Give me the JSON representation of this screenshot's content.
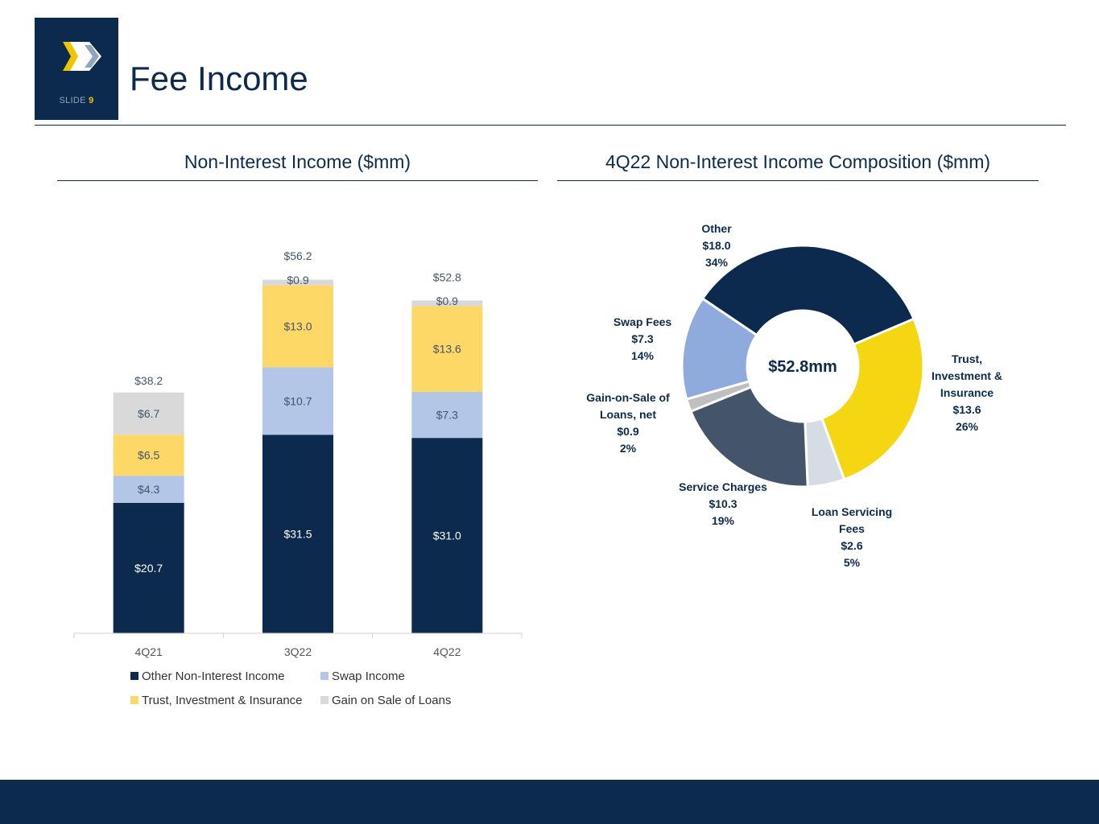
{
  "header": {
    "title": "Fee Income",
    "slide_label": "SLIDE",
    "slide_number": "9"
  },
  "left_panel": {
    "title": "Non-Interest Income ($mm)"
  },
  "right_panel": {
    "title": "4Q22 Non-Interest Income Composition ($mm)"
  },
  "colors": {
    "navy": "#0c2a4d",
    "swap": "#b3c6e7",
    "trust_bar": "#fdd866",
    "gain_bar": "#d9d9d9",
    "trust_donut": "#f4d612",
    "swap_donut": "#8faadc",
    "service": "#44546a",
    "loan_servicing": "#d6dce4",
    "gain_donut": "#bfbfbf"
  },
  "chart_data": [
    {
      "type": "bar",
      "stacked": true,
      "title": "Non-Interest Income ($mm)",
      "categories": [
        "4Q21",
        "3Q22",
        "4Q22"
      ],
      "series": [
        {
          "name": "Other Non-Interest Income",
          "values": [
            20.7,
            31.5,
            31.0
          ],
          "labels": [
            "$20.7",
            "$31.5",
            "$31.0"
          ]
        },
        {
          "name": "Swap Income",
          "values": [
            4.3,
            10.7,
            7.3
          ],
          "labels": [
            "$4.3",
            "$10.7",
            "$7.3"
          ]
        },
        {
          "name": "Trust, Investment & Insurance",
          "values": [
            6.5,
            13.0,
            13.6
          ],
          "labels": [
            "$6.5",
            "$13.0",
            "$13.6"
          ]
        },
        {
          "name": "Gain on Sale of Loans",
          "values": [
            6.7,
            0.9,
            0.9
          ],
          "labels": [
            "$6.7",
            "$0.9",
            "$0.9"
          ]
        }
      ],
      "totals": [
        38.2,
        56.2,
        52.8
      ],
      "total_labels": [
        "$38.2",
        "$56.2",
        "$52.8"
      ],
      "ylim": [
        0,
        60
      ],
      "legend": "bottom"
    },
    {
      "type": "pie",
      "donut": true,
      "title": "4Q22 Non-Interest Income Composition ($mm)",
      "center_label": "$52.8mm",
      "slices": [
        {
          "name": "Other",
          "value": 18.0,
          "percent": 34,
          "label_lines": [
            "Other",
            "$18.0",
            "34%"
          ]
        },
        {
          "name": "Trust, Investment & Insurance",
          "value": 13.6,
          "percent": 26,
          "label_lines": [
            "Trust,",
            "Investment &",
            "Insurance",
            "$13.6",
            "26%"
          ]
        },
        {
          "name": "Loan Servicing Fees",
          "value": 2.6,
          "percent": 5,
          "label_lines": [
            "Loan Servicing",
            "Fees",
            "$2.6",
            "5%"
          ]
        },
        {
          "name": "Service Charges",
          "value": 10.3,
          "percent": 19,
          "label_lines": [
            "Service Charges",
            "$10.3",
            "19%"
          ]
        },
        {
          "name": "Gain-on-Sale of Loans, net",
          "value": 0.9,
          "percent": 2,
          "label_lines": [
            "Gain-on-Sale of",
            "Loans, net",
            "$0.9",
            "2%"
          ]
        },
        {
          "name": "Swap Fees",
          "value": 7.3,
          "percent": 14,
          "label_lines": [
            "Swap Fees",
            "$7.3",
            "14%"
          ]
        }
      ]
    }
  ]
}
